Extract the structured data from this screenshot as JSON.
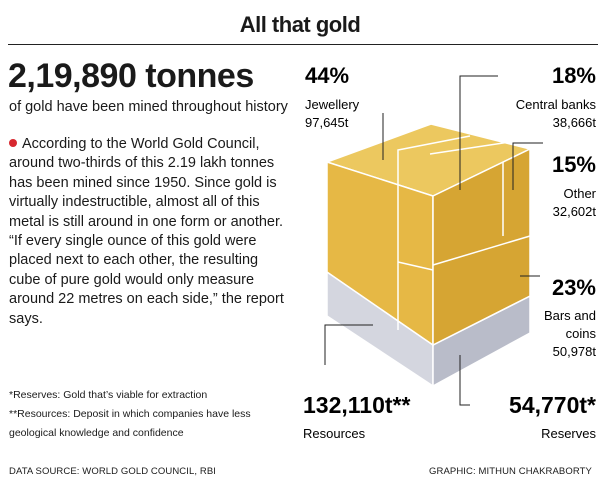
{
  "header": {
    "title": "All that gold"
  },
  "intro": {
    "headline": "2,19,890 tonnes",
    "subline": "of gold have been mined throughout history",
    "body": "According to the World Gold Council, around two-thirds of this 2.19 lakh tonnes has been mined since 1950. Since gold is virtually indestructible, almost all of this metal is still around in one form or another. “If every single ounce of this gold were placed next to each other, the resulting cube of pure gold would only measure around 22 metres on each side,” the report says."
  },
  "footnotes": {
    "reserves": "*Reserves: Gold that’s viable for extraction",
    "resources_1": "**Resources: Deposit in which companies have less",
    "resources_2": "geological knowledge and confidence"
  },
  "credits": {
    "source": "DATA SOURCE: WORLD GOLD COUNCIL, RBI",
    "graphic": "GRAPHIC: MITHUN CHAKRABORTY"
  },
  "colors": {
    "gold": "#e2b443",
    "silver": "#c9cbd6",
    "accent": "#d7282f"
  },
  "chart_data": {
    "type": "cube-breakdown",
    "title": "All that gold",
    "above_ground": [
      {
        "label": "Jewellery",
        "percent": "44%",
        "tonnes": "97,645t",
        "value": 97645
      },
      {
        "label": "Central banks",
        "percent": "18%",
        "tonnes": "38,666t",
        "value": 38666
      },
      {
        "label": "Other",
        "percent": "15%",
        "tonnes": "32,602t",
        "value": 32602
      },
      {
        "label": "Bars and",
        "label2": "coins",
        "percent": "23%",
        "tonnes": "50,978t",
        "value": 50978
      }
    ],
    "below_ground": [
      {
        "label": "Resources",
        "amount": "132,110t**",
        "value": 132110
      },
      {
        "label": "Reserves",
        "amount": "54,770t*",
        "value": 54770
      }
    ]
  }
}
